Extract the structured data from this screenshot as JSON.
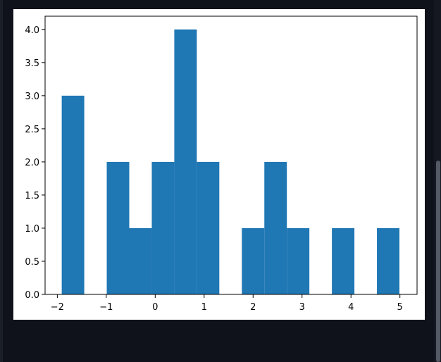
{
  "chart_data": {
    "type": "bar",
    "title": "",
    "xlabel": "",
    "ylabel": "",
    "bin_edges": [
      -1.91,
      -1.45,
      -0.99,
      -0.53,
      -0.07,
      0.39,
      0.85,
      1.31,
      1.77,
      2.23,
      2.69,
      3.15,
      3.61,
      4.07,
      4.53,
      4.99
    ],
    "counts": [
      3,
      0,
      2,
      1,
      2,
      4,
      2,
      0,
      1,
      2,
      1,
      0,
      1,
      0,
      1
    ],
    "xlim": [
      -2.25,
      5.35
    ],
    "ylim": [
      0,
      4.2
    ],
    "xticks": [
      "−2",
      "−1",
      "0",
      "1",
      "2",
      "3",
      "4",
      "5"
    ],
    "yticks": [
      "0.0",
      "0.5",
      "1.0",
      "1.5",
      "2.0",
      "2.5",
      "3.0",
      "3.5",
      "4.0"
    ],
    "bar_color": "#1f77b4",
    "grid": false,
    "legend": null
  }
}
